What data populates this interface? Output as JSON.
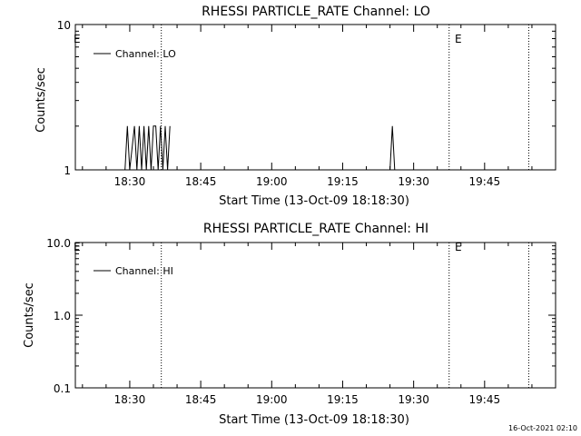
{
  "chart_data": [
    {
      "type": "line",
      "title": "RHESSI PARTICLE_RATE Channel: LO",
      "xlabel": "Start Time (13-Oct-09 18:18:30)",
      "ylabel": "Counts/sec",
      "yscale": "log",
      "ylim": [
        1,
        10
      ],
      "ytick_labels": [
        "1",
        "10"
      ],
      "xlim": [
        "18:18:30",
        "20:00:00"
      ],
      "xtick_labels": [
        "18:30",
        "18:45",
        "19:00",
        "19:15",
        "19:30",
        "19:45"
      ],
      "event_markers": [
        {
          "time": "18:36:40",
          "label": "E"
        },
        {
          "time": "19:37:30",
          "label": ""
        },
        {
          "time": "19:54:20",
          "label": ""
        }
      ],
      "event_edge_labels": [
        {
          "time": "18:18:30",
          "label": "E"
        },
        {
          "time": "19:37:30",
          "label": "E"
        }
      ],
      "legend": {
        "placement": "top-left",
        "entries": [
          "Channel: LO"
        ]
      },
      "grid": false,
      "series": [
        {
          "name": "Channel: LO",
          "x": [
            "18:29:00",
            "18:29:30",
            "18:30:00",
            "18:31:00",
            "18:31:30",
            "18:32:00",
            "18:32:30",
            "18:33:00",
            "18:33:30",
            "18:34:00",
            "18:34:30",
            "18:35:00",
            "18:35:30",
            "18:36:00",
            "18:36:30",
            "18:37:00",
            "18:37:30",
            "18:38:00",
            "18:38:30",
            "19:25:00",
            "19:25:30",
            "19:26:00"
          ],
          "y": [
            1,
            2,
            1,
            2,
            1,
            2,
            1,
            2,
            1,
            2,
            1,
            2,
            2,
            1,
            2,
            1,
            2,
            1,
            2,
            1,
            2,
            1
          ]
        }
      ]
    },
    {
      "type": "line",
      "title": "RHESSI PARTICLE_RATE Channel: HI",
      "xlabel": "Start Time (13-Oct-09 18:18:30)",
      "ylabel": "Counts/sec",
      "yscale": "log",
      "ylim": [
        0.1,
        10
      ],
      "ytick_labels": [
        "0.1",
        "1.0",
        "10.0"
      ],
      "xlim": [
        "18:18:30",
        "20:00:00"
      ],
      "xtick_labels": [
        "18:30",
        "18:45",
        "19:00",
        "19:15",
        "19:30",
        "19:45"
      ],
      "event_markers": [
        {
          "time": "18:36:40",
          "label": "E"
        },
        {
          "time": "19:37:30",
          "label": ""
        },
        {
          "time": "19:54:20",
          "label": ""
        }
      ],
      "event_edge_labels": [
        {
          "time": "18:18:30",
          "label": "E"
        },
        {
          "time": "19:37:30",
          "label": "E"
        }
      ],
      "legend": {
        "placement": "top-left",
        "entries": [
          "Channel: HI"
        ]
      },
      "grid": false,
      "series": [
        {
          "name": "Channel: HI",
          "x": [],
          "y": []
        }
      ]
    }
  ],
  "footer": {
    "timestamp": "16-Oct-2021 02:10"
  }
}
